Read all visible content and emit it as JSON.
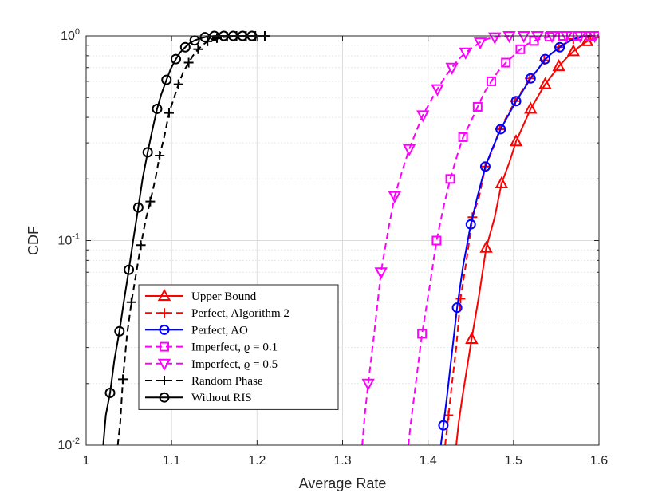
{
  "chart_data": {
    "type": "line",
    "title": "",
    "xlabel": "Average Rate",
    "ylabel": "CDF",
    "xlim": [
      1,
      1.6
    ],
    "ylim": [
      0.01,
      1
    ],
    "yscale": "log",
    "grid": true,
    "legend_position": "bottom-left",
    "x_ticks": [
      "1",
      "1.1",
      "1.2",
      "1.3",
      "1.4",
      "1.5",
      "1.6"
    ],
    "y_ticks": [
      {
        "value": 0.01,
        "base": "10",
        "exp": "-2"
      },
      {
        "value": 0.1,
        "base": "10",
        "exp": "-1"
      },
      {
        "value": 1,
        "base": "10",
        "exp": "0"
      }
    ],
    "series": [
      {
        "name": "Upper Bound",
        "color": "#ff0000",
        "dash": "solid",
        "marker": "triangle-up",
        "line": [
          [
            1.433,
            0.01
          ],
          [
            1.436,
            0.013
          ],
          [
            1.44,
            0.017
          ],
          [
            1.445,
            0.023
          ],
          [
            1.451,
            0.033
          ],
          [
            1.46,
            0.055
          ],
          [
            1.468,
            0.092
          ],
          [
            1.478,
            0.13
          ],
          [
            1.486,
            0.19
          ],
          [
            1.495,
            0.24
          ],
          [
            1.503,
            0.305
          ],
          [
            1.512,
            0.37
          ],
          [
            1.52,
            0.44
          ],
          [
            1.529,
            0.51
          ],
          [
            1.537,
            0.58
          ],
          [
            1.546,
            0.65
          ],
          [
            1.553,
            0.71
          ],
          [
            1.562,
            0.78
          ],
          [
            1.57,
            0.84
          ],
          [
            1.578,
            0.89
          ],
          [
            1.586,
            0.94
          ],
          [
            1.594,
            0.97
          ],
          [
            1.6,
            0.985
          ]
        ],
        "markers": [
          [
            1.451,
            0.033
          ],
          [
            1.468,
            0.092
          ],
          [
            1.486,
            0.19
          ],
          [
            1.503,
            0.305
          ],
          [
            1.52,
            0.44
          ],
          [
            1.537,
            0.58
          ],
          [
            1.553,
            0.71
          ],
          [
            1.57,
            0.84
          ],
          [
            1.586,
            0.94
          ]
        ]
      },
      {
        "name": "Perfect, Algorithm 2",
        "color": "#ff0000",
        "dash": "dashed",
        "marker": "plus",
        "line": [
          [
            1.42,
            0.01
          ],
          [
            1.424,
            0.014
          ],
          [
            1.428,
            0.02
          ],
          [
            1.433,
            0.03
          ],
          [
            1.438,
            0.052
          ],
          [
            1.445,
            0.08
          ],
          [
            1.452,
            0.13
          ],
          [
            1.46,
            0.165
          ],
          [
            1.467,
            0.23
          ],
          [
            1.475,
            0.275
          ],
          [
            1.484,
            0.35
          ],
          [
            1.493,
            0.41
          ],
          [
            1.502,
            0.48
          ],
          [
            1.51,
            0.54
          ],
          [
            1.519,
            0.62
          ],
          [
            1.528,
            0.68
          ],
          [
            1.536,
            0.76
          ],
          [
            1.545,
            0.82
          ],
          [
            1.553,
            0.88
          ],
          [
            1.562,
            0.93
          ],
          [
            1.57,
            0.965
          ],
          [
            1.58,
            0.99
          ],
          [
            1.59,
            1.0
          ]
        ],
        "markers": [
          [
            1.424,
            0.014
          ],
          [
            1.438,
            0.052
          ],
          [
            1.452,
            0.13
          ],
          [
            1.467,
            0.23
          ],
          [
            1.484,
            0.35
          ],
          [
            1.502,
            0.48
          ],
          [
            1.519,
            0.62
          ],
          [
            1.536,
            0.76
          ],
          [
            1.553,
            0.88
          ],
          [
            1.57,
            0.965
          ],
          [
            1.59,
            1.0
          ]
        ]
      },
      {
        "name": "Perfect, AO",
        "color": "#0000ff",
        "dash": "solid",
        "marker": "circle",
        "line": [
          [
            1.415,
            0.01
          ],
          [
            1.418,
            0.0125
          ],
          [
            1.422,
            0.017
          ],
          [
            1.427,
            0.026
          ],
          [
            1.434,
            0.047
          ],
          [
            1.441,
            0.075
          ],
          [
            1.45,
            0.12
          ],
          [
            1.458,
            0.165
          ],
          [
            1.467,
            0.23
          ],
          [
            1.475,
            0.28
          ],
          [
            1.485,
            0.35
          ],
          [
            1.494,
            0.41
          ],
          [
            1.503,
            0.48
          ],
          [
            1.511,
            0.54
          ],
          [
            1.52,
            0.62
          ],
          [
            1.529,
            0.69
          ],
          [
            1.537,
            0.77
          ],
          [
            1.546,
            0.83
          ],
          [
            1.554,
            0.88
          ],
          [
            1.563,
            0.93
          ],
          [
            1.572,
            0.97
          ],
          [
            1.58,
            0.99
          ],
          [
            1.59,
            1.0
          ]
        ],
        "markers": [
          [
            1.418,
            0.0125
          ],
          [
            1.434,
            0.047
          ],
          [
            1.45,
            0.12
          ],
          [
            1.467,
            0.23
          ],
          [
            1.485,
            0.35
          ],
          [
            1.503,
            0.48
          ],
          [
            1.52,
            0.62
          ],
          [
            1.537,
            0.77
          ],
          [
            1.554,
            0.88
          ]
        ]
      },
      {
        "name": "Imperfect, ϱ = 0.1",
        "color": "#ff00ff",
        "dash": "dashed",
        "marker": "square",
        "line": [
          [
            1.377,
            0.01
          ],
          [
            1.38,
            0.013
          ],
          [
            1.385,
            0.019
          ],
          [
            1.393,
            0.035
          ],
          [
            1.402,
            0.06
          ],
          [
            1.41,
            0.1
          ],
          [
            1.418,
            0.145
          ],
          [
            1.426,
            0.2
          ],
          [
            1.434,
            0.26
          ],
          [
            1.441,
            0.32
          ],
          [
            1.45,
            0.38
          ],
          [
            1.458,
            0.45
          ],
          [
            1.466,
            0.53
          ],
          [
            1.474,
            0.6
          ],
          [
            1.482,
            0.67
          ],
          [
            1.491,
            0.74
          ],
          [
            1.5,
            0.8
          ],
          [
            1.508,
            0.86
          ],
          [
            1.516,
            0.91
          ],
          [
            1.524,
            0.945
          ],
          [
            1.533,
            0.97
          ],
          [
            1.542,
            0.99
          ],
          [
            1.55,
            1.0
          ]
        ],
        "markers": [
          [
            1.393,
            0.035
          ],
          [
            1.41,
            0.1
          ],
          [
            1.426,
            0.2
          ],
          [
            1.441,
            0.32
          ],
          [
            1.458,
            0.45
          ],
          [
            1.474,
            0.6
          ],
          [
            1.491,
            0.74
          ],
          [
            1.508,
            0.86
          ],
          [
            1.524,
            0.945
          ],
          [
            1.542,
            0.99
          ],
          [
            1.558,
            1.0
          ],
          [
            1.575,
            1.0
          ],
          [
            1.59,
            1.0
          ]
        ]
      },
      {
        "name": "Imperfect, ϱ = 0.5",
        "color": "#ff00ff",
        "dash": "dashed",
        "marker": "triangle-down",
        "line": [
          [
            1.323,
            0.01
          ],
          [
            1.326,
            0.014
          ],
          [
            1.33,
            0.02
          ],
          [
            1.337,
            0.035
          ],
          [
            1.345,
            0.07
          ],
          [
            1.353,
            0.11
          ],
          [
            1.361,
            0.165
          ],
          [
            1.37,
            0.22
          ],
          [
            1.378,
            0.28
          ],
          [
            1.386,
            0.34
          ],
          [
            1.394,
            0.41
          ],
          [
            1.403,
            0.48
          ],
          [
            1.411,
            0.55
          ],
          [
            1.42,
            0.63
          ],
          [
            1.428,
            0.7
          ],
          [
            1.436,
            0.77
          ],
          [
            1.444,
            0.83
          ],
          [
            1.453,
            0.88
          ],
          [
            1.461,
            0.93
          ],
          [
            1.469,
            0.965
          ],
          [
            1.478,
            0.985
          ],
          [
            1.486,
            0.995
          ],
          [
            1.495,
            1.0
          ]
        ],
        "markers": [
          [
            1.33,
            0.02
          ],
          [
            1.345,
            0.07
          ],
          [
            1.361,
            0.165
          ],
          [
            1.378,
            0.28
          ],
          [
            1.394,
            0.41
          ],
          [
            1.411,
            0.55
          ],
          [
            1.428,
            0.7
          ],
          [
            1.444,
            0.83
          ],
          [
            1.461,
            0.93
          ],
          [
            1.478,
            0.985
          ],
          [
            1.495,
            1.0
          ],
          [
            1.512,
            1.0
          ],
          [
            1.528,
            1.0
          ],
          [
            1.545,
            1.0
          ],
          [
            1.562,
            1.0
          ],
          [
            1.578,
            1.0
          ],
          [
            1.595,
            1.0
          ]
        ]
      },
      {
        "name": "Random Phase",
        "color": "#000000",
        "dash": "dashed",
        "marker": "plus",
        "line": [
          [
            1.037,
            0.01
          ],
          [
            1.04,
            0.013
          ],
          [
            1.043,
            0.021
          ],
          [
            1.048,
            0.035
          ],
          [
            1.053,
            0.05
          ],
          [
            1.058,
            0.067
          ],
          [
            1.064,
            0.095
          ],
          [
            1.07,
            0.128
          ],
          [
            1.075,
            0.155
          ],
          [
            1.081,
            0.2
          ],
          [
            1.086,
            0.26
          ],
          [
            1.092,
            0.33
          ],
          [
            1.097,
            0.42
          ],
          [
            1.103,
            0.5
          ],
          [
            1.108,
            0.58
          ],
          [
            1.114,
            0.67
          ],
          [
            1.12,
            0.74
          ],
          [
            1.125,
            0.8
          ],
          [
            1.131,
            0.86
          ],
          [
            1.136,
            0.9
          ],
          [
            1.142,
            0.94
          ],
          [
            1.148,
            0.96
          ],
          [
            1.153,
            0.975
          ],
          [
            1.159,
            0.985
          ],
          [
            1.165,
            0.99
          ],
          [
            1.17,
            0.995
          ],
          [
            1.176,
            1.0
          ],
          [
            1.21,
            1.0
          ]
        ],
        "markers": [
          [
            1.043,
            0.021
          ],
          [
            1.053,
            0.05
          ],
          [
            1.064,
            0.095
          ],
          [
            1.075,
            0.155
          ],
          [
            1.086,
            0.26
          ],
          [
            1.097,
            0.42
          ],
          [
            1.108,
            0.58
          ],
          [
            1.12,
            0.74
          ],
          [
            1.131,
            0.86
          ],
          [
            1.142,
            0.94
          ],
          [
            1.153,
            0.975
          ],
          [
            1.165,
            0.99
          ],
          [
            1.176,
            1.0
          ],
          [
            1.187,
            1.0
          ],
          [
            1.198,
            1.0
          ],
          [
            1.209,
            1.0
          ]
        ]
      },
      {
        "name": "Without RIS",
        "color": "#000000",
        "dash": "solid",
        "marker": "circle",
        "line": [
          [
            1.02,
            0.01
          ],
          [
            1.023,
            0.014
          ],
          [
            1.028,
            0.018
          ],
          [
            1.033,
            0.026
          ],
          [
            1.039,
            0.036
          ],
          [
            1.044,
            0.05
          ],
          [
            1.05,
            0.072
          ],
          [
            1.055,
            0.1
          ],
          [
            1.061,
            0.145
          ],
          [
            1.066,
            0.2
          ],
          [
            1.072,
            0.27
          ],
          [
            1.077,
            0.34
          ],
          [
            1.083,
            0.44
          ],
          [
            1.088,
            0.52
          ],
          [
            1.094,
            0.61
          ],
          [
            1.099,
            0.69
          ],
          [
            1.105,
            0.77
          ],
          [
            1.11,
            0.83
          ],
          [
            1.116,
            0.88
          ],
          [
            1.121,
            0.92
          ],
          [
            1.127,
            0.95
          ],
          [
            1.133,
            0.97
          ],
          [
            1.139,
            0.985
          ],
          [
            1.145,
            0.995
          ],
          [
            1.15,
            1.0
          ],
          [
            1.2,
            1.0
          ]
        ],
        "markers": [
          [
            1.028,
            0.018
          ],
          [
            1.039,
            0.036
          ],
          [
            1.05,
            0.072
          ],
          [
            1.061,
            0.145
          ],
          [
            1.072,
            0.27
          ],
          [
            1.083,
            0.44
          ],
          [
            1.094,
            0.61
          ],
          [
            1.105,
            0.77
          ],
          [
            1.116,
            0.88
          ],
          [
            1.127,
            0.95
          ],
          [
            1.139,
            0.985
          ],
          [
            1.15,
            1.0
          ],
          [
            1.161,
            1.0
          ],
          [
            1.172,
            1.0
          ],
          [
            1.183,
            1.0
          ],
          [
            1.194,
            1.0
          ]
        ]
      }
    ]
  }
}
